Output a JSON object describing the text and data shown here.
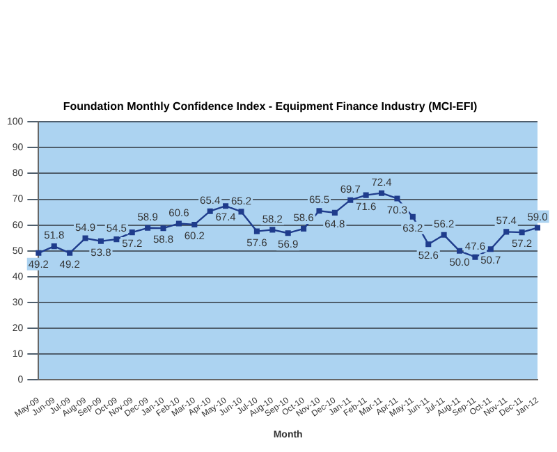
{
  "chart_data": {
    "type": "line",
    "title": "Foundation Monthly Confidence Index - Equipment Finance Industry (MCI-EFI)",
    "xlabel": "Month",
    "categories": [
      "May-09",
      "Jun-09",
      "Jul-09",
      "Aug-09",
      "Sep-09",
      "Oct-09",
      "Nov-09",
      "Dec-09",
      "Jan-10",
      "Feb-10",
      "Mar-10",
      "Apr-10",
      "May-10",
      "Jun-10",
      "Jul-10",
      "Aug-10",
      "Sep-10",
      "Oct-10",
      "Nov-10",
      "Dec-10",
      "Jan-11",
      "Feb-11",
      "Mar-11",
      "Apr-11",
      "May-11",
      "Jun-11",
      "Jul-11",
      "Aug-11",
      "Sep-11",
      "Oct-11",
      "Nov-11",
      "Dec-11",
      "Jan-12"
    ],
    "series": [
      {
        "color": "#1f3c8c",
        "values": [
          49.2,
          51.8,
          49.2,
          54.9,
          53.8,
          54.5,
          57.2,
          58.9,
          58.8,
          60.6,
          60.2,
          65.4,
          67.4,
          65.2,
          57.6,
          58.2,
          56.9,
          58.6,
          65.5,
          64.8,
          69.7,
          71.6,
          72.4,
          70.3,
          63.2,
          52.6,
          56.2,
          50.0,
          47.6,
          50.7,
          57.4,
          57.2,
          59.0
        ],
        "value_labels": [
          "49.2",
          "51.8",
          "49.2",
          "54.9",
          "53.8",
          "54.5",
          "57.2",
          "58.9",
          "58.8",
          "60.6",
          "60.2",
          "65.4",
          "67.4",
          "65.2",
          "57.6",
          "58.2",
          "56.9",
          "58.6",
          "65.5",
          "64.8",
          "69.7",
          "71.6",
          "72.4",
          "70.3",
          "63.2",
          "52.6",
          "56.2",
          "50.0",
          "47.6",
          "50.7",
          "57.4",
          "57.2",
          "59.0"
        ]
      }
    ],
    "ylim": [
      0,
      100
    ],
    "yticks": [
      0,
      10,
      20,
      30,
      40,
      50,
      60,
      70,
      80,
      90,
      100
    ],
    "grid": "y",
    "marker": "square",
    "line_style": "solid",
    "legend": false
  }
}
